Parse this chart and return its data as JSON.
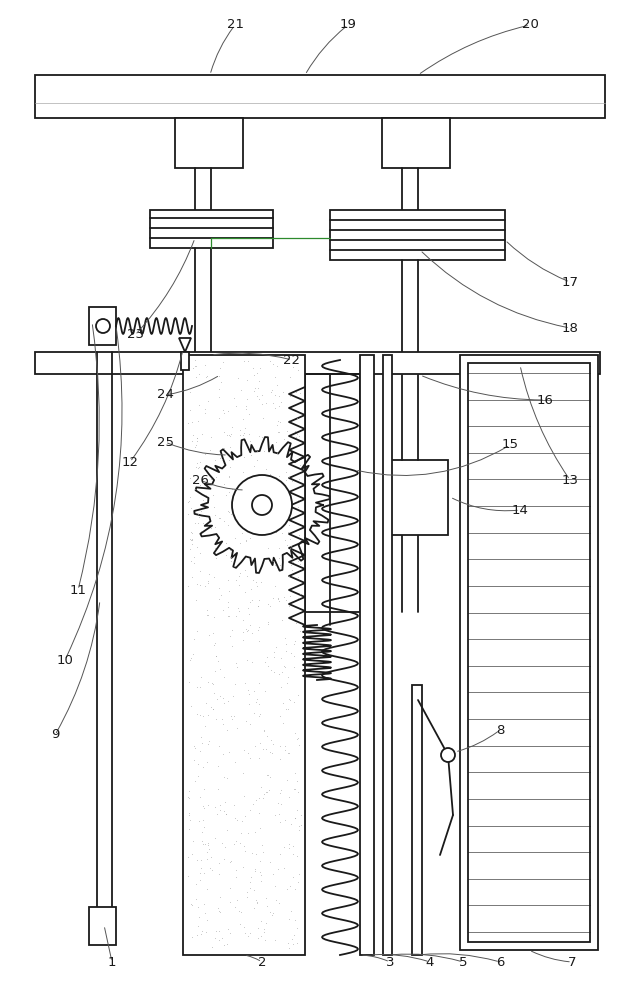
{
  "bg_color": "#ffffff",
  "line_color": "#1a1a1a",
  "green_line": "#2d8a2d",
  "label_color": "#1a1a1a",
  "fig_width": 6.23,
  "fig_height": 10.0,
  "dpi": 100
}
